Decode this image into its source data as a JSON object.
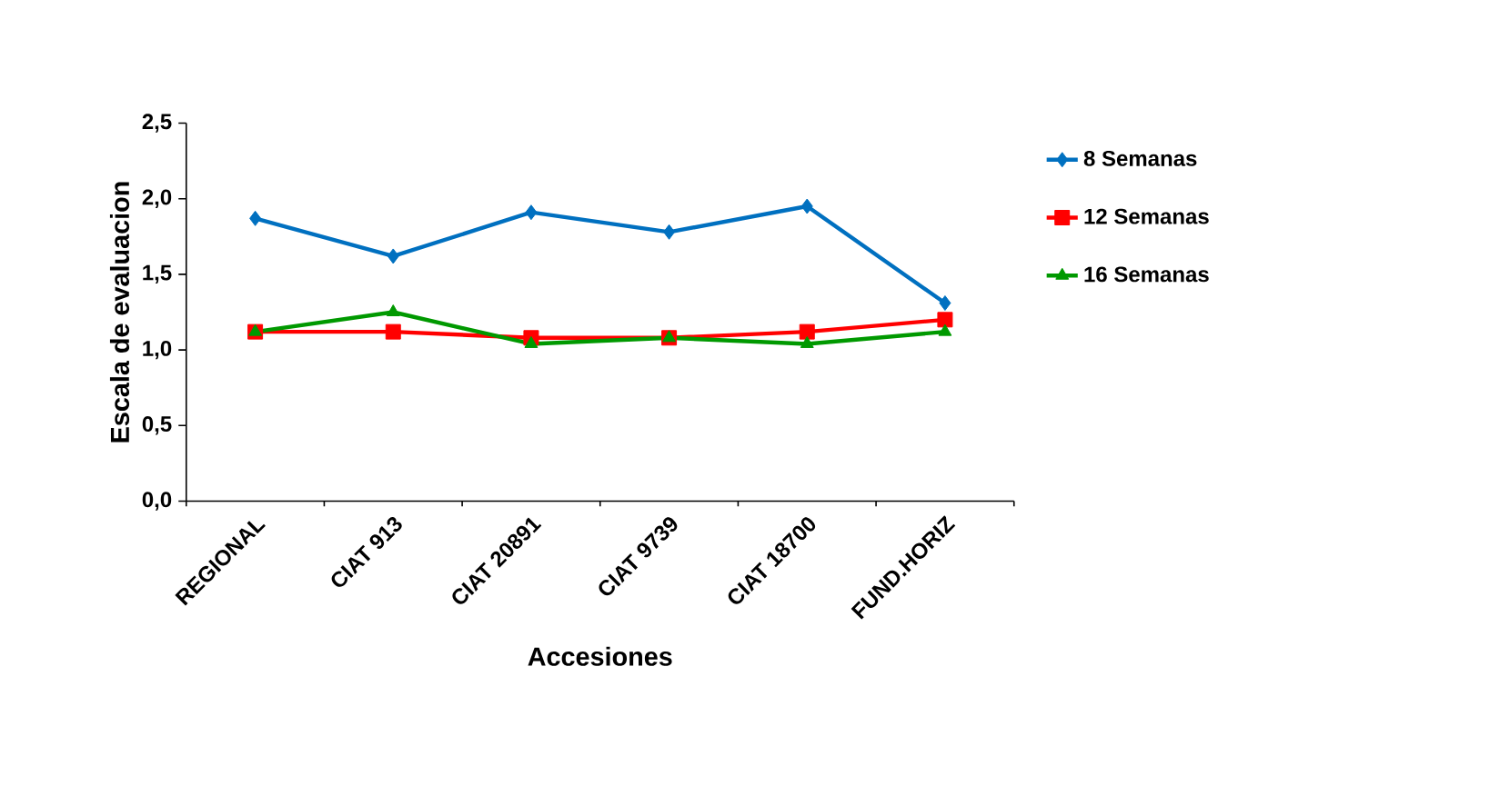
{
  "chart_data": {
    "type": "line",
    "xlabel": "Accesiones",
    "ylabel": "Escala de evaluacion",
    "categories": [
      "REGIONAL",
      "CIAT 913",
      "CIAT 20891",
      "CIAT 9739",
      "CIAT 18700",
      "FUND.HORIZ"
    ],
    "series": [
      {
        "name": "8 Semanas",
        "color": "#0070c0",
        "marker": "diamond",
        "values": [
          1.87,
          1.62,
          1.91,
          1.78,
          1.95,
          1.31
        ]
      },
      {
        "name": "12 Semanas",
        "color": "#ff0000",
        "marker": "square",
        "values": [
          1.12,
          1.12,
          1.08,
          1.08,
          1.12,
          1.2
        ]
      },
      {
        "name": "16 Semanas",
        "color": "#009900",
        "marker": "triangle",
        "values": [
          1.12,
          1.25,
          1.04,
          1.08,
          1.04,
          1.12
        ]
      }
    ],
    "ylim": [
      0,
      2.5
    ],
    "yticks": [
      {
        "value": 0,
        "label": "0,0"
      },
      {
        "value": 0.5,
        "label": "0,5"
      },
      {
        "value": 1,
        "label": "1,0"
      },
      {
        "value": 1.5,
        "label": "1,5"
      },
      {
        "value": 2,
        "label": "2,0"
      },
      {
        "value": 2.5,
        "label": "2,5"
      }
    ],
    "grid": false,
    "legend": "right",
    "line_style": "solid"
  }
}
